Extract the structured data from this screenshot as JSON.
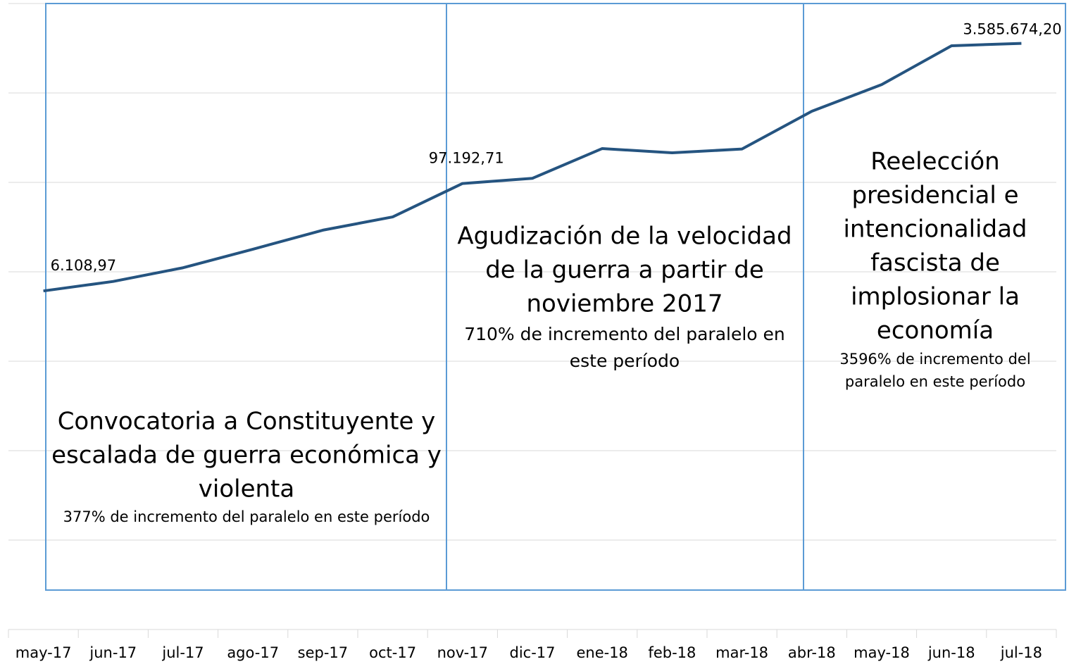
{
  "chart_data": {
    "type": "line",
    "categories": [
      "may-17",
      "jun-17",
      "jul-17",
      "ago-17",
      "sep-17",
      "oct-17",
      "nov-17",
      "dic-17",
      "ene-18",
      "feb-18",
      "mar-18",
      "abr-18",
      "may-18",
      "jun-18",
      "jul-18"
    ],
    "series": [
      {
        "color": "#255480",
        "values": [
          6108.97,
          7800,
          11100,
          17900,
          29200,
          41100,
          97192.71,
          111000,
          239000,
          214000,
          236000,
          624000,
          1240000,
          3370000,
          3585674.2
        ],
        "value_labels": [
          "6.108,97",
          null,
          null,
          null,
          null,
          null,
          "97.192,71",
          null,
          null,
          null,
          null,
          null,
          null,
          null,
          "3.585.674,20"
        ]
      }
    ],
    "log_scale": true,
    "ylim": [
      1,
      10000000
    ],
    "yticks": [
      1,
      10,
      100,
      1000,
      10000,
      100000,
      1000000,
      10000000
    ],
    "grid": true,
    "annotations": [
      {
        "title_lines": [
          "Convocatoria a Constituyente y",
          "escalada de guerra económica y",
          "violenta"
        ],
        "note_lines": [
          "377% de incremento del paralelo en este período"
        ]
      },
      {
        "title_lines": [
          "Agudización de la velocidad",
          "de la guerra a partir de",
          "noviembre 2017"
        ],
        "note_lines": [
          "710% de incremento del paralelo en",
          "este período"
        ]
      },
      {
        "title_lines": [
          "Reelección",
          "presidencial e",
          "intencionalidad",
          "fascista de",
          "implosionar la",
          "economía"
        ],
        "note_lines": [
          "3596% de incremento del",
          "paralelo en este período"
        ]
      }
    ]
  }
}
